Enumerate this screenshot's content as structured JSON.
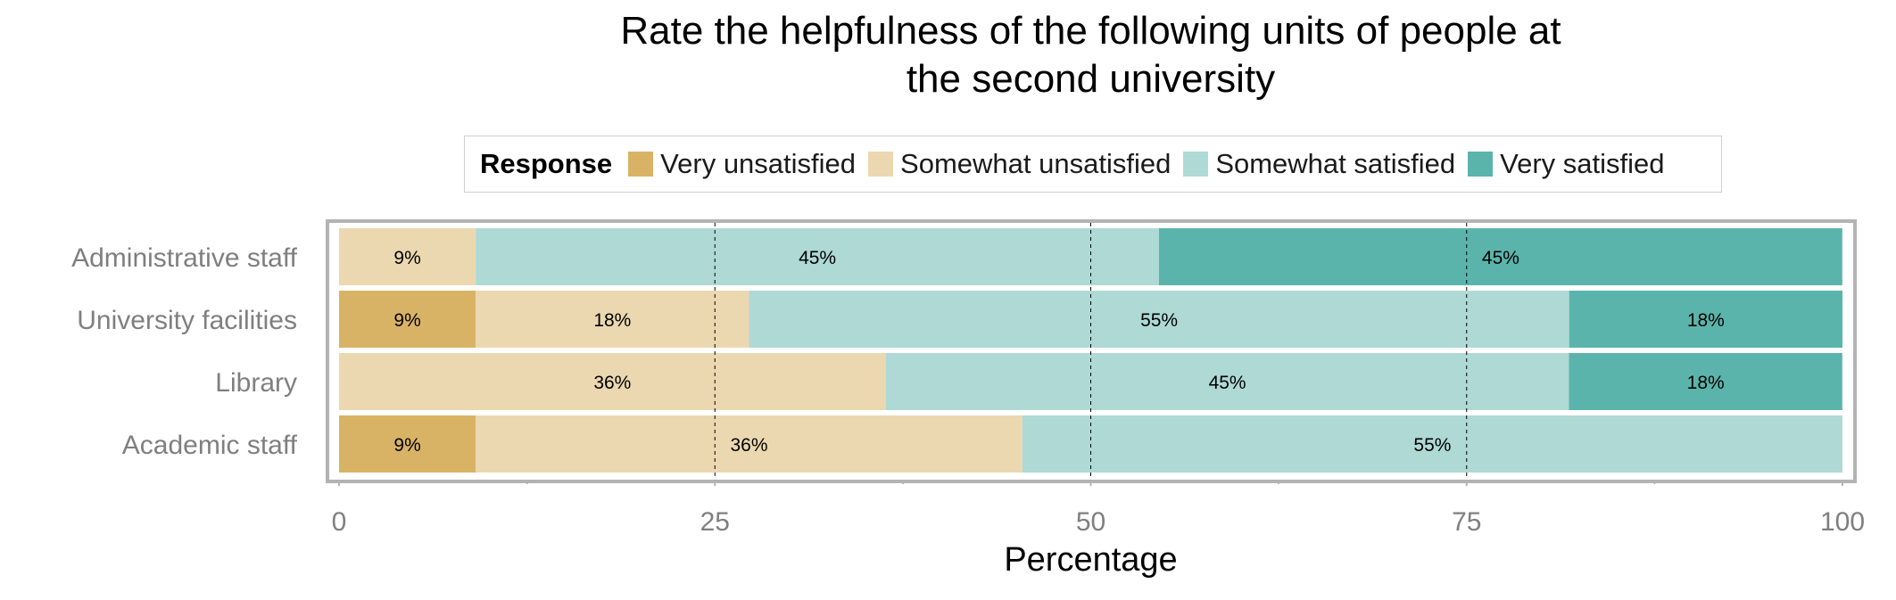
{
  "chart_data": {
    "type": "bar",
    "orientation": "horizontal",
    "stacked": true,
    "title": "Rate the helpfulness of the following units of people at\nthe second university",
    "xlabel": "Percentage",
    "ylabel": "",
    "xlim": [
      0,
      100
    ],
    "x_ticks": [
      "0",
      "25",
      "50",
      "75",
      "100"
    ],
    "grid": "dashed vertical at 25, 50, 75",
    "legend_title": "Response",
    "legend_position": "top",
    "categories": [
      "Administrative staff",
      "University facilities",
      "Library",
      "Academic staff"
    ],
    "series": [
      {
        "name": "Very unsatisfied",
        "color": "#D9B365",
        "values": [
          0,
          9.09,
          0,
          9.09
        ],
        "labels": [
          "",
          "9%",
          "",
          "9%"
        ]
      },
      {
        "name": "Somewhat unsatisfied",
        "color": "#EBD8B0",
        "values": [
          9.09,
          18.18,
          36.36,
          36.36
        ],
        "labels": [
          "9%",
          "18%",
          "36%",
          "36%"
        ]
      },
      {
        "name": "Somewhat satisfied",
        "color": "#AED9D5",
        "values": [
          45.45,
          54.55,
          45.45,
          54.55
        ],
        "labels": [
          "45%",
          "55%",
          "45%",
          "55%"
        ]
      },
      {
        "name": "Very satisfied",
        "color": "#5BB4AB",
        "values": [
          45.45,
          18.18,
          18.18,
          0
        ],
        "labels": [
          "45%",
          "18%",
          "18%",
          ""
        ]
      }
    ]
  }
}
